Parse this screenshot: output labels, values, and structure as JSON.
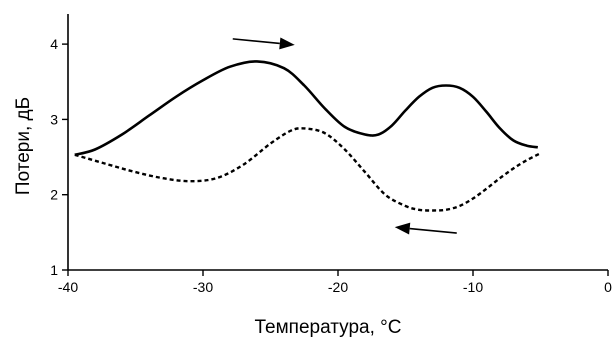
{
  "chart_data": {
    "type": "line",
    "title": "",
    "xlabel": "Температура, °C",
    "ylabel": "Потери, дБ",
    "xlim": [
      -40,
      0
    ],
    "ylim": [
      1,
      4.4
    ],
    "x_ticks": [
      -40,
      -30,
      -20,
      -10,
      0
    ],
    "y_ticks": [
      1,
      2,
      3,
      4
    ],
    "x_tick_labels": [
      "-40",
      "-30",
      "-20",
      "-10",
      "0"
    ],
    "y_tick_labels": [
      "1",
      "2",
      "3",
      "4"
    ],
    "grid": false,
    "legend": "none",
    "series": [
      {
        "line_style": "solid",
        "direction": "increasing temperature",
        "color": "#000000",
        "x": [
          -39.5,
          -38,
          -36,
          -34,
          -32,
          -30,
          -28,
          -26,
          -24,
          -22.5,
          -21,
          -19.5,
          -18,
          -17,
          -16,
          -15,
          -14,
          -13,
          -12,
          -11,
          -10,
          -9,
          -8,
          -7,
          -6,
          -5.2
        ],
        "y": [
          2.53,
          2.6,
          2.8,
          3.05,
          3.3,
          3.52,
          3.7,
          3.77,
          3.68,
          3.45,
          3.15,
          2.9,
          2.8,
          2.8,
          2.92,
          3.12,
          3.3,
          3.42,
          3.45,
          3.42,
          3.3,
          3.1,
          2.88,
          2.72,
          2.65,
          2.63
        ]
      },
      {
        "line_style": "dashed",
        "direction": "decreasing temperature",
        "color": "#000000",
        "x": [
          -39.5,
          -37,
          -35,
          -33,
          -31,
          -29,
          -27,
          -25,
          -23.5,
          -22.5,
          -21,
          -19.5,
          -18,
          -16.5,
          -15,
          -14,
          -13,
          -12,
          -11,
          -10,
          -9,
          -8,
          -7,
          -6,
          -5
        ],
        "y": [
          2.53,
          2.4,
          2.3,
          2.22,
          2.18,
          2.22,
          2.4,
          2.68,
          2.85,
          2.88,
          2.82,
          2.6,
          2.3,
          2.0,
          1.85,
          1.8,
          1.79,
          1.8,
          1.85,
          1.95,
          2.08,
          2.22,
          2.35,
          2.46,
          2.55
        ]
      }
    ],
    "annotations": [
      {
        "type": "arrow",
        "meaning": "heating direction",
        "points_to": "right",
        "near": {
          "x": -25.5,
          "y": 4.03
        }
      },
      {
        "type": "arrow",
        "meaning": "cooling direction",
        "points_to": "left",
        "near": {
          "x": -13.5,
          "y": 1.53
        }
      }
    ]
  }
}
